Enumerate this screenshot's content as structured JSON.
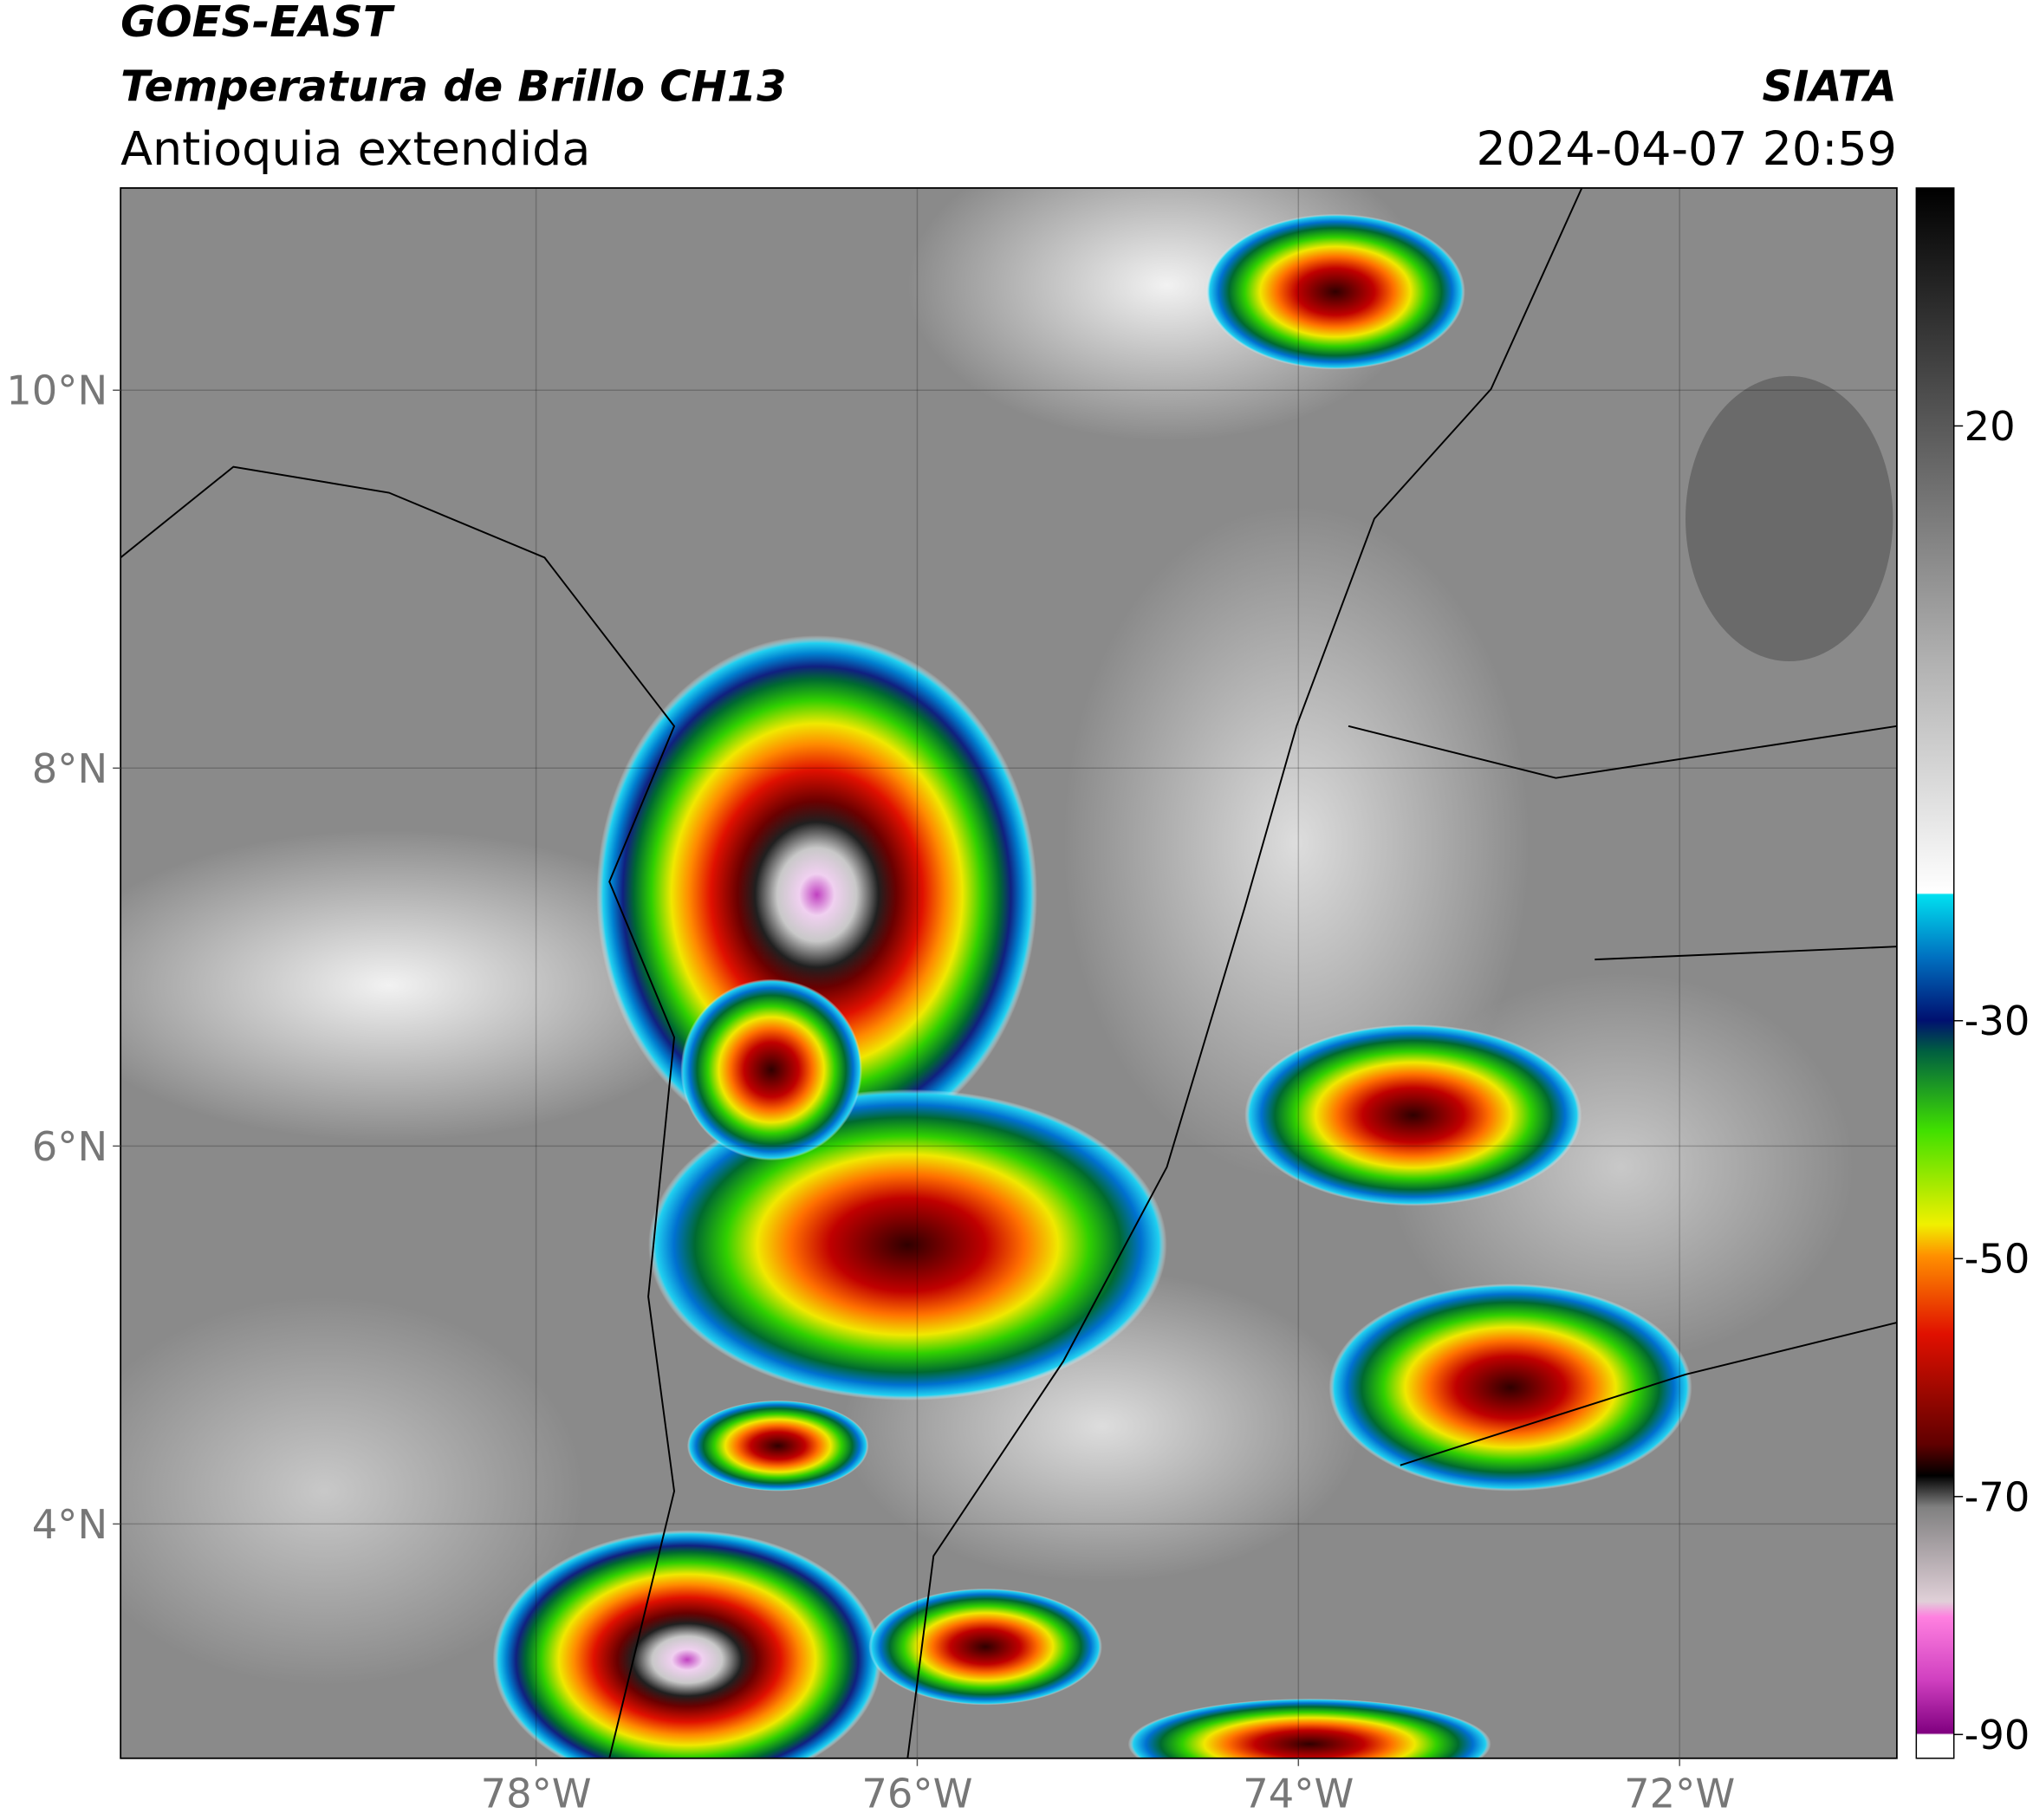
{
  "header": {
    "title": "GOES-EAST",
    "subtitle": "Temperatura de Brillo CH13",
    "region": "Antioquia extendida",
    "source": "SIATA",
    "datetime": "2024-04-07 20:59"
  },
  "map": {
    "lonlim": [
      -80.18,
      -70.86
    ],
    "latlim": [
      2.76,
      11.07
    ],
    "lon_ticks": [
      {
        "value": -78,
        "label": "78°W"
      },
      {
        "value": -76,
        "label": "76°W"
      },
      {
        "value": -74,
        "label": "74°W"
      },
      {
        "value": -72,
        "label": "72°W"
      }
    ],
    "lat_ticks": [
      {
        "value": 10,
        "label": "10°N"
      },
      {
        "value": 8,
        "label": "8°N"
      },
      {
        "value": 6,
        "label": "6°N"
      },
      {
        "value": 4,
        "label": "4°N"
      }
    ]
  },
  "colorbar": {
    "lim": [
      -92,
      40
    ],
    "ticks": [
      20,
      -30,
      -50,
      -70,
      -90
    ]
  }
}
